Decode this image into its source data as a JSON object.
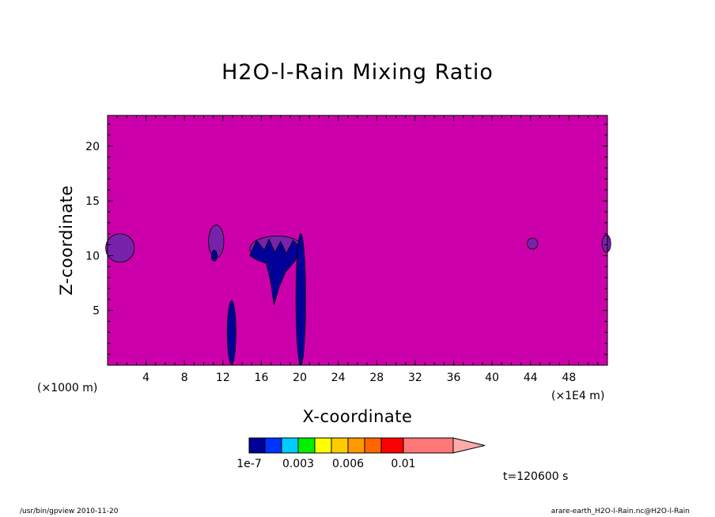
{
  "chart_data": {
    "type": "heatmap",
    "title": "H2O-l-Rain Mixing Ratio",
    "xlabel": "X-coordinate",
    "ylabel": "Z-coordinate",
    "x_unit_left": "(×1000 m)",
    "x_unit_right": "(×1E4 m)",
    "x_ticks": [
      4,
      8,
      12,
      16,
      20,
      24,
      28,
      32,
      36,
      40,
      44,
      48
    ],
    "x_tick_labels": [
      "4",
      "8",
      "12",
      "16",
      "20",
      "24",
      "28",
      "32",
      "36",
      "40",
      "44",
      "48"
    ],
    "y_ticks": [
      5,
      10,
      15,
      20
    ],
    "y_tick_labels": [
      "5",
      "10",
      "15",
      "20"
    ],
    "xlim": [
      0,
      52
    ],
    "ylim": [
      0,
      22.8
    ],
    "background_color": "#cc00aa",
    "colorbar": {
      "levels": [
        1e-07,
        0.001,
        0.002,
        0.003,
        0.004,
        0.005,
        0.006,
        0.007,
        0.008,
        0.01
      ],
      "colors": [
        "#000099",
        "#0033ff",
        "#00ccff",
        "#00ee00",
        "#ffff00",
        "#ffcc00",
        "#ff9900",
        "#ff6600",
        "#ff0000",
        "#ff7777",
        "#ffaaaa"
      ],
      "tick_labels": [
        "1e-7",
        "0.003",
        "0.006",
        "0.01"
      ],
      "tick_levels": [
        1e-07,
        0.003,
        0.006,
        0.01
      ]
    },
    "features": [
      {
        "shape": "ellipse",
        "cx": 1.3,
        "cy": 10.7,
        "rx": 1.5,
        "ry": 1.3,
        "color": "#7722aa"
      },
      {
        "shape": "ellipse",
        "cx": 11.3,
        "cy": 11.3,
        "rx": 0.8,
        "ry": 1.5,
        "color": "#7722aa"
      },
      {
        "shape": "ellipse",
        "cx": 11.1,
        "cy": 10.0,
        "rx": 0.3,
        "ry": 0.5,
        "color": "#000099"
      },
      {
        "shape": "ellipse",
        "cx": 44.2,
        "cy": 11.1,
        "rx": 0.55,
        "ry": 0.5,
        "color": "#7722aa"
      },
      {
        "shape": "ellipse",
        "cx": 51.9,
        "cy": 11.1,
        "rx": 0.45,
        "ry": 0.8,
        "color": "#7722aa"
      },
      {
        "shape": "ellipse",
        "cx": 17.6,
        "cy": 10.6,
        "rx": 2.8,
        "ry": 1.2,
        "color": "#7722aa"
      },
      {
        "shape": "polygon",
        "color": "#000099",
        "points": [
          [
            14.8,
            10.0
          ],
          [
            15.5,
            11.4
          ],
          [
            16.3,
            10.5
          ],
          [
            16.8,
            11.5
          ],
          [
            17.4,
            10.3
          ],
          [
            18.0,
            11.3
          ],
          [
            18.6,
            10.2
          ],
          [
            19.3,
            11.4
          ],
          [
            20.0,
            10.8
          ],
          [
            19.5,
            9.5
          ],
          [
            18.5,
            8.5
          ],
          [
            17.8,
            7.0
          ],
          [
            17.3,
            5.5
          ],
          [
            17.0,
            7.5
          ],
          [
            16.5,
            9.3
          ],
          [
            15.5,
            9.6
          ]
        ]
      },
      {
        "shape": "ellipse",
        "cx": 20.1,
        "cy": 6.0,
        "rx": 0.5,
        "ry": 6.0,
        "color": "#000099"
      },
      {
        "shape": "ellipse",
        "cx": 12.9,
        "cy": 3.0,
        "rx": 0.45,
        "ry": 2.9,
        "color": "#000099"
      }
    ]
  },
  "time_label": "t=120600 s",
  "footer_left": "/usr/bin/gpview   2010-11-20",
  "footer_right": "arare-earth_H2O-l-Rain.nc@H2O-l-Rain"
}
